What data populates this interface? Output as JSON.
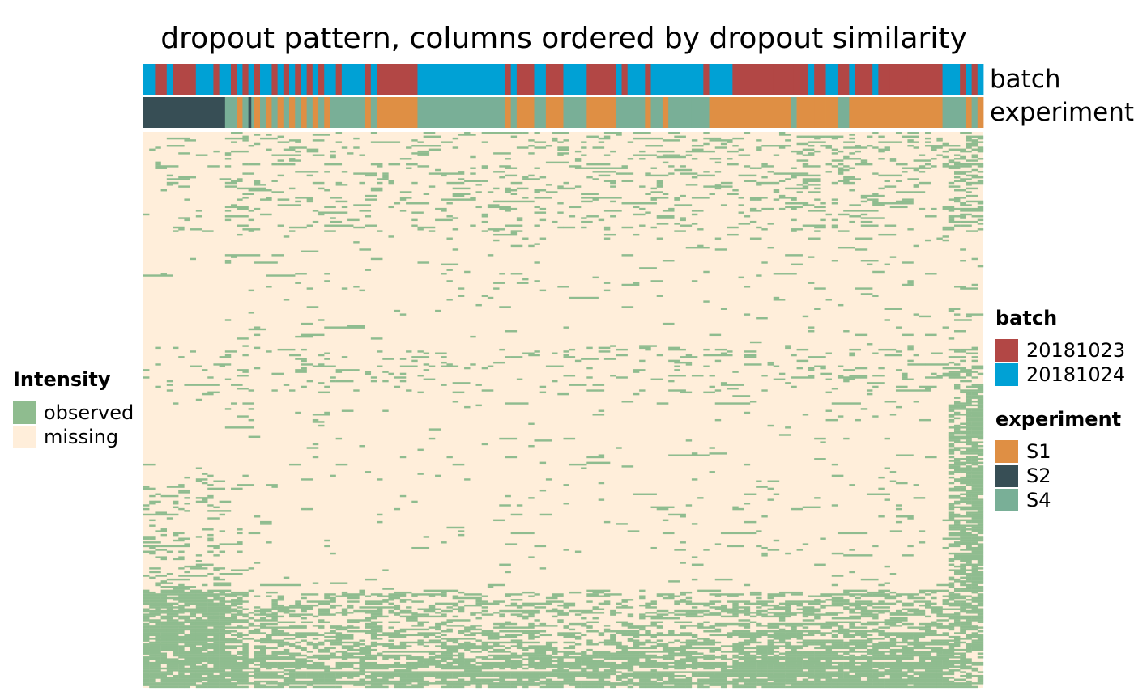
{
  "chart_data": {
    "type": "heatmap",
    "title": "dropout pattern, columns ordered by dropout similarity",
    "annotations": [
      {
        "name": "batch",
        "categories": [
          {
            "label": "20181023",
            "color": "#B24745"
          },
          {
            "label": "20181024",
            "color": "#00A1D5"
          }
        ]
      },
      {
        "name": "experiment",
        "categories": [
          {
            "label": "S1",
            "color": "#DF8F44"
          },
          {
            "label": "S2",
            "color": "#374E55"
          },
          {
            "label": "S4",
            "color": "#79AF97"
          }
        ]
      }
    ],
    "legend": {
      "title": "Intensity",
      "entries": [
        {
          "label": "observed",
          "color": "#8FBC8F"
        },
        {
          "label": "missing",
          "color": "#FFEEDA"
        }
      ]
    },
    "n_columns": 144,
    "n_rows": 300
  }
}
